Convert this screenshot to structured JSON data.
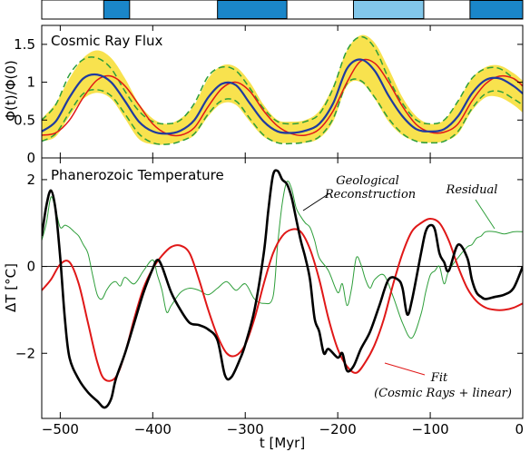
{
  "chart_data": [
    {
      "type": "line",
      "title": "Cosmic Ray Flux",
      "ylabel": "Φ(t)/Φ(0)",
      "xlim": [
        -520,
        0
      ],
      "ylim": [
        0,
        1.75
      ],
      "yticks": [
        0,
        0.5,
        1,
        1.5
      ],
      "ytick_labels": [
        "0",
        "0.5",
        "1",
        "1.5"
      ],
      "colors": {
        "band": "#f8e24e",
        "mean": "#1f3aa0",
        "fit": "#e01818",
        "bounds": "#2e9e3a"
      },
      "band": {
        "x": [
          -520,
          -505,
          -490,
          -475,
          -460,
          -445,
          -430,
          -415,
          -400,
          -385,
          -370,
          -355,
          -340,
          -325,
          -310,
          -295,
          -280,
          -265,
          -250,
          -235,
          -220,
          -205,
          -190,
          -175,
          -160,
          -145,
          -130,
          -115,
          -100,
          -85,
          -70,
          -55,
          -40,
          -25,
          -10,
          0
        ],
        "lower": [
          0.22,
          0.28,
          0.55,
          0.78,
          0.86,
          0.78,
          0.52,
          0.25,
          0.18,
          0.18,
          0.22,
          0.3,
          0.55,
          0.72,
          0.7,
          0.48,
          0.28,
          0.2,
          0.2,
          0.2,
          0.26,
          0.48,
          0.95,
          1.0,
          0.78,
          0.48,
          0.3,
          0.22,
          0.2,
          0.22,
          0.32,
          0.62,
          0.8,
          0.8,
          0.7,
          0.6
        ],
        "upper": [
          0.52,
          0.72,
          1.05,
          1.32,
          1.42,
          1.32,
          1.05,
          0.72,
          0.52,
          0.45,
          0.52,
          0.7,
          1.05,
          1.22,
          1.2,
          1.0,
          0.7,
          0.5,
          0.48,
          0.5,
          0.62,
          0.95,
          1.42,
          1.62,
          1.52,
          1.18,
          0.8,
          0.55,
          0.45,
          0.5,
          0.75,
          1.05,
          1.2,
          1.22,
          1.12,
          1.02
        ]
      },
      "series": [
        {
          "x": [
            -520,
            -505,
            -490,
            -475,
            -460,
            -445,
            -430,
            -415,
            -400,
            -385,
            -370,
            -355,
            -340,
            -325,
            -310,
            -295,
            -280,
            -265,
            -250,
            -235,
            -220,
            -205,
            -190,
            -175,
            -160,
            -145,
            -130,
            -115,
            -100,
            -85,
            -70,
            -55,
            -40,
            -25,
            -10,
            0
          ],
          "y": [
            0.35,
            0.48,
            0.8,
            1.05,
            1.1,
            1.0,
            0.75,
            0.48,
            0.35,
            0.32,
            0.36,
            0.5,
            0.8,
            0.98,
            0.96,
            0.72,
            0.48,
            0.35,
            0.33,
            0.36,
            0.45,
            0.72,
            1.18,
            1.3,
            1.15,
            0.82,
            0.55,
            0.38,
            0.35,
            0.38,
            0.55,
            0.85,
            1.03,
            1.05,
            0.95,
            0.85
          ]
        },
        {
          "x": [
            -520,
            -505,
            -490,
            -475,
            -460,
            -445,
            -430,
            -415,
            -400,
            -385,
            -370,
            -355,
            -340,
            -325,
            -310,
            -295,
            -280,
            -265,
            -250,
            -235,
            -220,
            -205,
            -190,
            -175,
            -160,
            -145,
            -130,
            -115,
            -100,
            -85,
            -70,
            -55,
            -40,
            -25,
            -10,
            0
          ],
          "y": [
            0.3,
            0.33,
            0.5,
            0.8,
            1.03,
            1.08,
            0.95,
            0.7,
            0.45,
            0.32,
            0.3,
            0.4,
            0.68,
            0.92,
            1.0,
            0.88,
            0.62,
            0.42,
            0.32,
            0.3,
            0.38,
            0.62,
            1.0,
            1.28,
            1.25,
            1.0,
            0.68,
            0.44,
            0.34,
            0.34,
            0.45,
            0.75,
            0.98,
            1.08,
            1.05,
            0.95
          ]
        },
        {
          "x": [
            -520,
            -505,
            -490,
            -475,
            -460,
            -445,
            -430,
            -415,
            -400,
            -385,
            -370,
            -355,
            -340,
            -325,
            -310,
            -295,
            -280,
            -265,
            -250,
            -235,
            -220,
            -205,
            -190,
            -175,
            -160,
            -145,
            -130,
            -115,
            -100,
            -85,
            -70,
            -55,
            -40,
            -25,
            -10,
            0
          ],
          "y": [
            0.5,
            0.7,
            1.1,
            1.3,
            1.32,
            1.18,
            0.88,
            0.62,
            0.48,
            0.45,
            0.5,
            0.72,
            1.08,
            1.2,
            1.15,
            0.92,
            0.65,
            0.48,
            0.45,
            0.48,
            0.58,
            0.92,
            1.42,
            1.6,
            1.45,
            1.05,
            0.72,
            0.5,
            0.45,
            0.5,
            0.75,
            1.05,
            1.18,
            1.18,
            1.05,
            0.95
          ]
        },
        {
          "x": [
            -520,
            -505,
            -490,
            -475,
            -460,
            -445,
            -430,
            -415,
            -400,
            -385,
            -370,
            -355,
            -340,
            -325,
            -310,
            -295,
            -280,
            -265,
            -250,
            -235,
            -220,
            -205,
            -190,
            -175,
            -160,
            -145,
            -130,
            -115,
            -100,
            -85,
            -70,
            -55,
            -40,
            -25,
            -10,
            0
          ],
          "y": [
            0.22,
            0.32,
            0.6,
            0.85,
            0.9,
            0.82,
            0.58,
            0.32,
            0.2,
            0.18,
            0.22,
            0.32,
            0.58,
            0.76,
            0.75,
            0.52,
            0.3,
            0.2,
            0.19,
            0.21,
            0.28,
            0.52,
            0.98,
            1.02,
            0.8,
            0.52,
            0.32,
            0.22,
            0.2,
            0.22,
            0.35,
            0.65,
            0.85,
            0.88,
            0.78,
            0.7
          ]
        }
      ],
      "period_bar": {
        "x_start": [
          -453,
          -330,
          -183,
          -57
        ],
        "x_end": [
          -425,
          -255,
          -107,
          0
        ],
        "colors": [
          "#1a86c9",
          "#1a86c9",
          "#82c7ea",
          "#1a86c9"
        ]
      }
    },
    {
      "type": "line",
      "title": "Phanerozoic Temperature",
      "xlabel": "t [Myr]",
      "ylabel": "ΔT [°C]",
      "xlim": [
        -520,
        0
      ],
      "ylim": [
        -3.5,
        2.5
      ],
      "xticks": [
        -500,
        -400,
        -300,
        -200,
        -100,
        0
      ],
      "xtick_labels": [
        "−500",
        "−400",
        "−300",
        "−200",
        "−100",
        "0"
      ],
      "yticks": [
        -2,
        0,
        2
      ],
      "ytick_labels": [
        "−2",
        "0",
        "2"
      ],
      "zero_line": true,
      "annotations": [
        "Geological",
        "Reconstruction",
        "Residual",
        "Fit",
        "(Cosmic Rays + linear)"
      ],
      "series": [
        {
          "color": "#000000",
          "x": [
            -520,
            -515,
            -510,
            -505,
            -500,
            -495,
            -490,
            -480,
            -470,
            -460,
            -452,
            -445,
            -440,
            -430,
            -420,
            -410,
            -400,
            -395,
            -390,
            -380,
            -370,
            -360,
            -350,
            -340,
            -330,
            -322,
            -315,
            -305,
            -300,
            -290,
            -280,
            -275,
            -270,
            -265,
            -260,
            -255,
            -250,
            -245,
            -240,
            -235,
            -230,
            -225,
            -220,
            -215,
            -210,
            -200,
            -195,
            -190,
            -183,
            -175,
            -165,
            -155,
            -145,
            -135,
            -130,
            -125,
            -120,
            -110,
            -105,
            -100,
            -95,
            -90,
            -85,
            -80,
            -70,
            -60,
            -55,
            -50,
            -45,
            -40,
            -30,
            -20,
            -10,
            0
          ],
          "y": [
            0.7,
            1.4,
            1.75,
            1.3,
            0.2,
            -1.2,
            -2.1,
            -2.6,
            -2.9,
            -3.1,
            -3.25,
            -3.05,
            -2.6,
            -2.0,
            -1.3,
            -0.6,
            -0.05,
            0.15,
            0.0,
            -0.6,
            -1.0,
            -1.3,
            -1.35,
            -1.45,
            -1.7,
            -2.5,
            -2.55,
            -2.1,
            -1.8,
            -1.0,
            0.3,
            1.3,
            2.1,
            2.2,
            2.0,
            1.9,
            1.6,
            1.1,
            0.6,
            0.2,
            -0.3,
            -1.2,
            -1.5,
            -2.0,
            -1.9,
            -2.1,
            -2.0,
            -2.4,
            -2.3,
            -1.9,
            -1.5,
            -0.9,
            -0.3,
            -0.3,
            -0.5,
            -1.1,
            -0.8,
            0.3,
            0.8,
            0.95,
            0.85,
            0.3,
            0.1,
            -0.1,
            0.5,
            0.2,
            -0.3,
            -0.6,
            -0.7,
            -0.75,
            -0.7,
            -0.65,
            -0.5,
            0.0
          ]
        },
        {
          "color": "#e01818",
          "x": [
            -520,
            -510,
            -500,
            -490,
            -480,
            -470,
            -460,
            -452,
            -440,
            -430,
            -420,
            -410,
            -400,
            -390,
            -380,
            -370,
            -360,
            -350,
            -340,
            -330,
            -320,
            -310,
            -300,
            -290,
            -280,
            -270,
            -260,
            -250,
            -240,
            -230,
            -220,
            -210,
            -200,
            -190,
            -180,
            -170,
            -160,
            -150,
            -140,
            -130,
            -120,
            -110,
            -100,
            -90,
            -80,
            -70,
            -60,
            -50,
            -40,
            -30,
            -20,
            -10,
            0
          ],
          "y": [
            -0.55,
            -0.3,
            0.05,
            0.1,
            -0.4,
            -1.3,
            -2.2,
            -2.6,
            -2.55,
            -2.0,
            -1.2,
            -0.5,
            -0.05,
            0.25,
            0.45,
            0.48,
            0.3,
            -0.3,
            -1.0,
            -1.6,
            -2.0,
            -2.05,
            -1.8,
            -1.2,
            -0.4,
            0.3,
            0.7,
            0.85,
            0.8,
            0.4,
            -0.3,
            -1.2,
            -1.9,
            -2.3,
            -2.45,
            -2.2,
            -1.8,
            -1.2,
            -0.4,
            0.3,
            0.8,
            1.0,
            1.1,
            1.0,
            0.6,
            0.0,
            -0.5,
            -0.8,
            -0.95,
            -1.0,
            -1.0,
            -0.95,
            -0.85
          ]
        },
        {
          "color": "#2e9e3a",
          "x": [
            -520,
            -515,
            -510,
            -505,
            -500,
            -495,
            -490,
            -485,
            -480,
            -475,
            -470,
            -465,
            -460,
            -455,
            -450,
            -445,
            -440,
            -435,
            -430,
            -420,
            -410,
            -400,
            -395,
            -390,
            -385,
            -380,
            -370,
            -360,
            -350,
            -340,
            -330,
            -320,
            -310,
            -300,
            -290,
            -280,
            -270,
            -265,
            -260,
            -255,
            -250,
            -245,
            -240,
            -235,
            -230,
            -225,
            -220,
            -210,
            -200,
            -195,
            -190,
            -185,
            -180,
            -175,
            -170,
            -165,
            -160,
            -150,
            -140,
            -130,
            -120,
            -110,
            -105,
            -100,
            -95,
            -90,
            -85,
            -80,
            -70,
            -60,
            -55,
            -50,
            -45,
            -40,
            -30,
            -20,
            -10,
            0
          ],
          "y": [
            0.6,
            1.0,
            1.6,
            1.3,
            0.9,
            0.95,
            0.9,
            0.8,
            0.7,
            0.5,
            0.3,
            -0.2,
            -0.65,
            -0.75,
            -0.55,
            -0.4,
            -0.35,
            -0.45,
            -0.25,
            -0.4,
            -0.1,
            0.15,
            -0.2,
            -0.55,
            -1.05,
            -0.9,
            -0.6,
            -0.5,
            -0.55,
            -0.65,
            -0.5,
            -0.35,
            -0.55,
            -0.4,
            -0.75,
            -0.85,
            -0.7,
            0.5,
            1.45,
            1.95,
            1.8,
            1.35,
            1.15,
            1.0,
            0.9,
            0.6,
            0.2,
            -0.1,
            -0.6,
            -0.4,
            -0.9,
            -0.5,
            0.2,
            0.05,
            -0.3,
            -0.5,
            -0.3,
            -0.2,
            -0.7,
            -1.3,
            -1.65,
            -1.1,
            -0.6,
            -0.2,
            -0.1,
            0.0,
            -0.4,
            -0.1,
            0.2,
            0.45,
            0.5,
            0.65,
            0.7,
            0.8,
            0.8,
            0.75,
            0.8,
            0.8
          ]
        }
      ]
    }
  ]
}
